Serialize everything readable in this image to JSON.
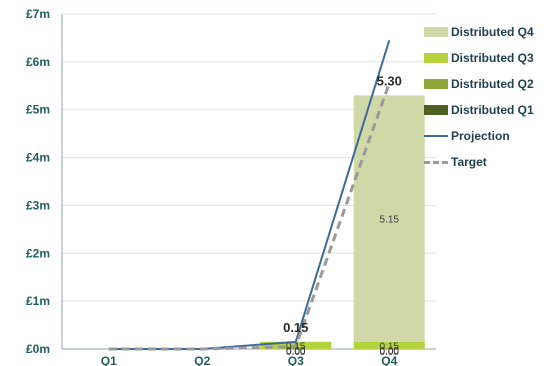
{
  "chart_data": {
    "type": "bar",
    "stacked": true,
    "categories": [
      "Q1",
      "Q2",
      "Q3",
      "Q4"
    ],
    "y_ticks": [
      "£0m",
      "£1m",
      "£2m",
      "£3m",
      "£4m",
      "£5m",
      "£6m",
      "£7m"
    ],
    "ylim": [
      0,
      7
    ],
    "grid": true,
    "legend_position": "right",
    "series": [
      {
        "name": "Distributed Q4",
        "values": [
          0,
          0,
          0,
          5.15
        ],
        "color": "#d0d8a8"
      },
      {
        "name": "Distributed Q3",
        "values": [
          0,
          0,
          0.15,
          0.15
        ],
        "color": "#b5d23c"
      },
      {
        "name": "Distributed Q2",
        "values": [
          0,
          0,
          0,
          0
        ],
        "color": "#8fa83a"
      },
      {
        "name": "Distributed Q1",
        "values": [
          0,
          0,
          0,
          0
        ],
        "color": "#4f5f1f"
      }
    ],
    "lines": [
      {
        "name": "Projection",
        "values": [
          0,
          0,
          0.15,
          6.45
        ],
        "color": "#3d6a9a",
        "dash": false
      },
      {
        "name": "Target",
        "values": [
          0,
          0,
          0.05,
          5.55
        ],
        "color": "#9a9a9a",
        "dash": true
      }
    ],
    "segment_labels": [
      {
        "category": "Q3",
        "series": "Distributed Q3",
        "text": "0.15"
      },
      {
        "category": "Q3",
        "series": "Distributed Q2",
        "text": "0.00"
      },
      {
        "category": "Q3",
        "series": "Distributed Q1",
        "text": "0.00"
      },
      {
        "category": "Q4",
        "series": "Distributed Q4",
        "text": "5.15"
      },
      {
        "category": "Q4",
        "series": "Distributed Q3",
        "text": "0.15"
      },
      {
        "category": "Q4",
        "series": "Distributed Q2",
        "text": "0.00"
      },
      {
        "category": "Q4",
        "series": "Distributed Q1",
        "text": "0.00"
      }
    ],
    "total_labels": [
      {
        "category": "Q3",
        "text": "0.15"
      },
      {
        "category": "Q4",
        "text": "5.30"
      }
    ]
  },
  "legend": {
    "items": [
      {
        "label": "Distributed Q4",
        "color": "#d0d8a8",
        "kind": "box"
      },
      {
        "label": "Distributed Q3",
        "color": "#b5d23c",
        "kind": "box"
      },
      {
        "label": "Distributed Q2",
        "color": "#8fa83a",
        "kind": "box"
      },
      {
        "label": "Distributed Q1",
        "color": "#4f5f1f",
        "kind": "box"
      },
      {
        "label": "Projection",
        "color": "#3d6a9a",
        "kind": "line"
      },
      {
        "label": "Target",
        "color": "#9a9a9a",
        "kind": "dash"
      }
    ]
  }
}
